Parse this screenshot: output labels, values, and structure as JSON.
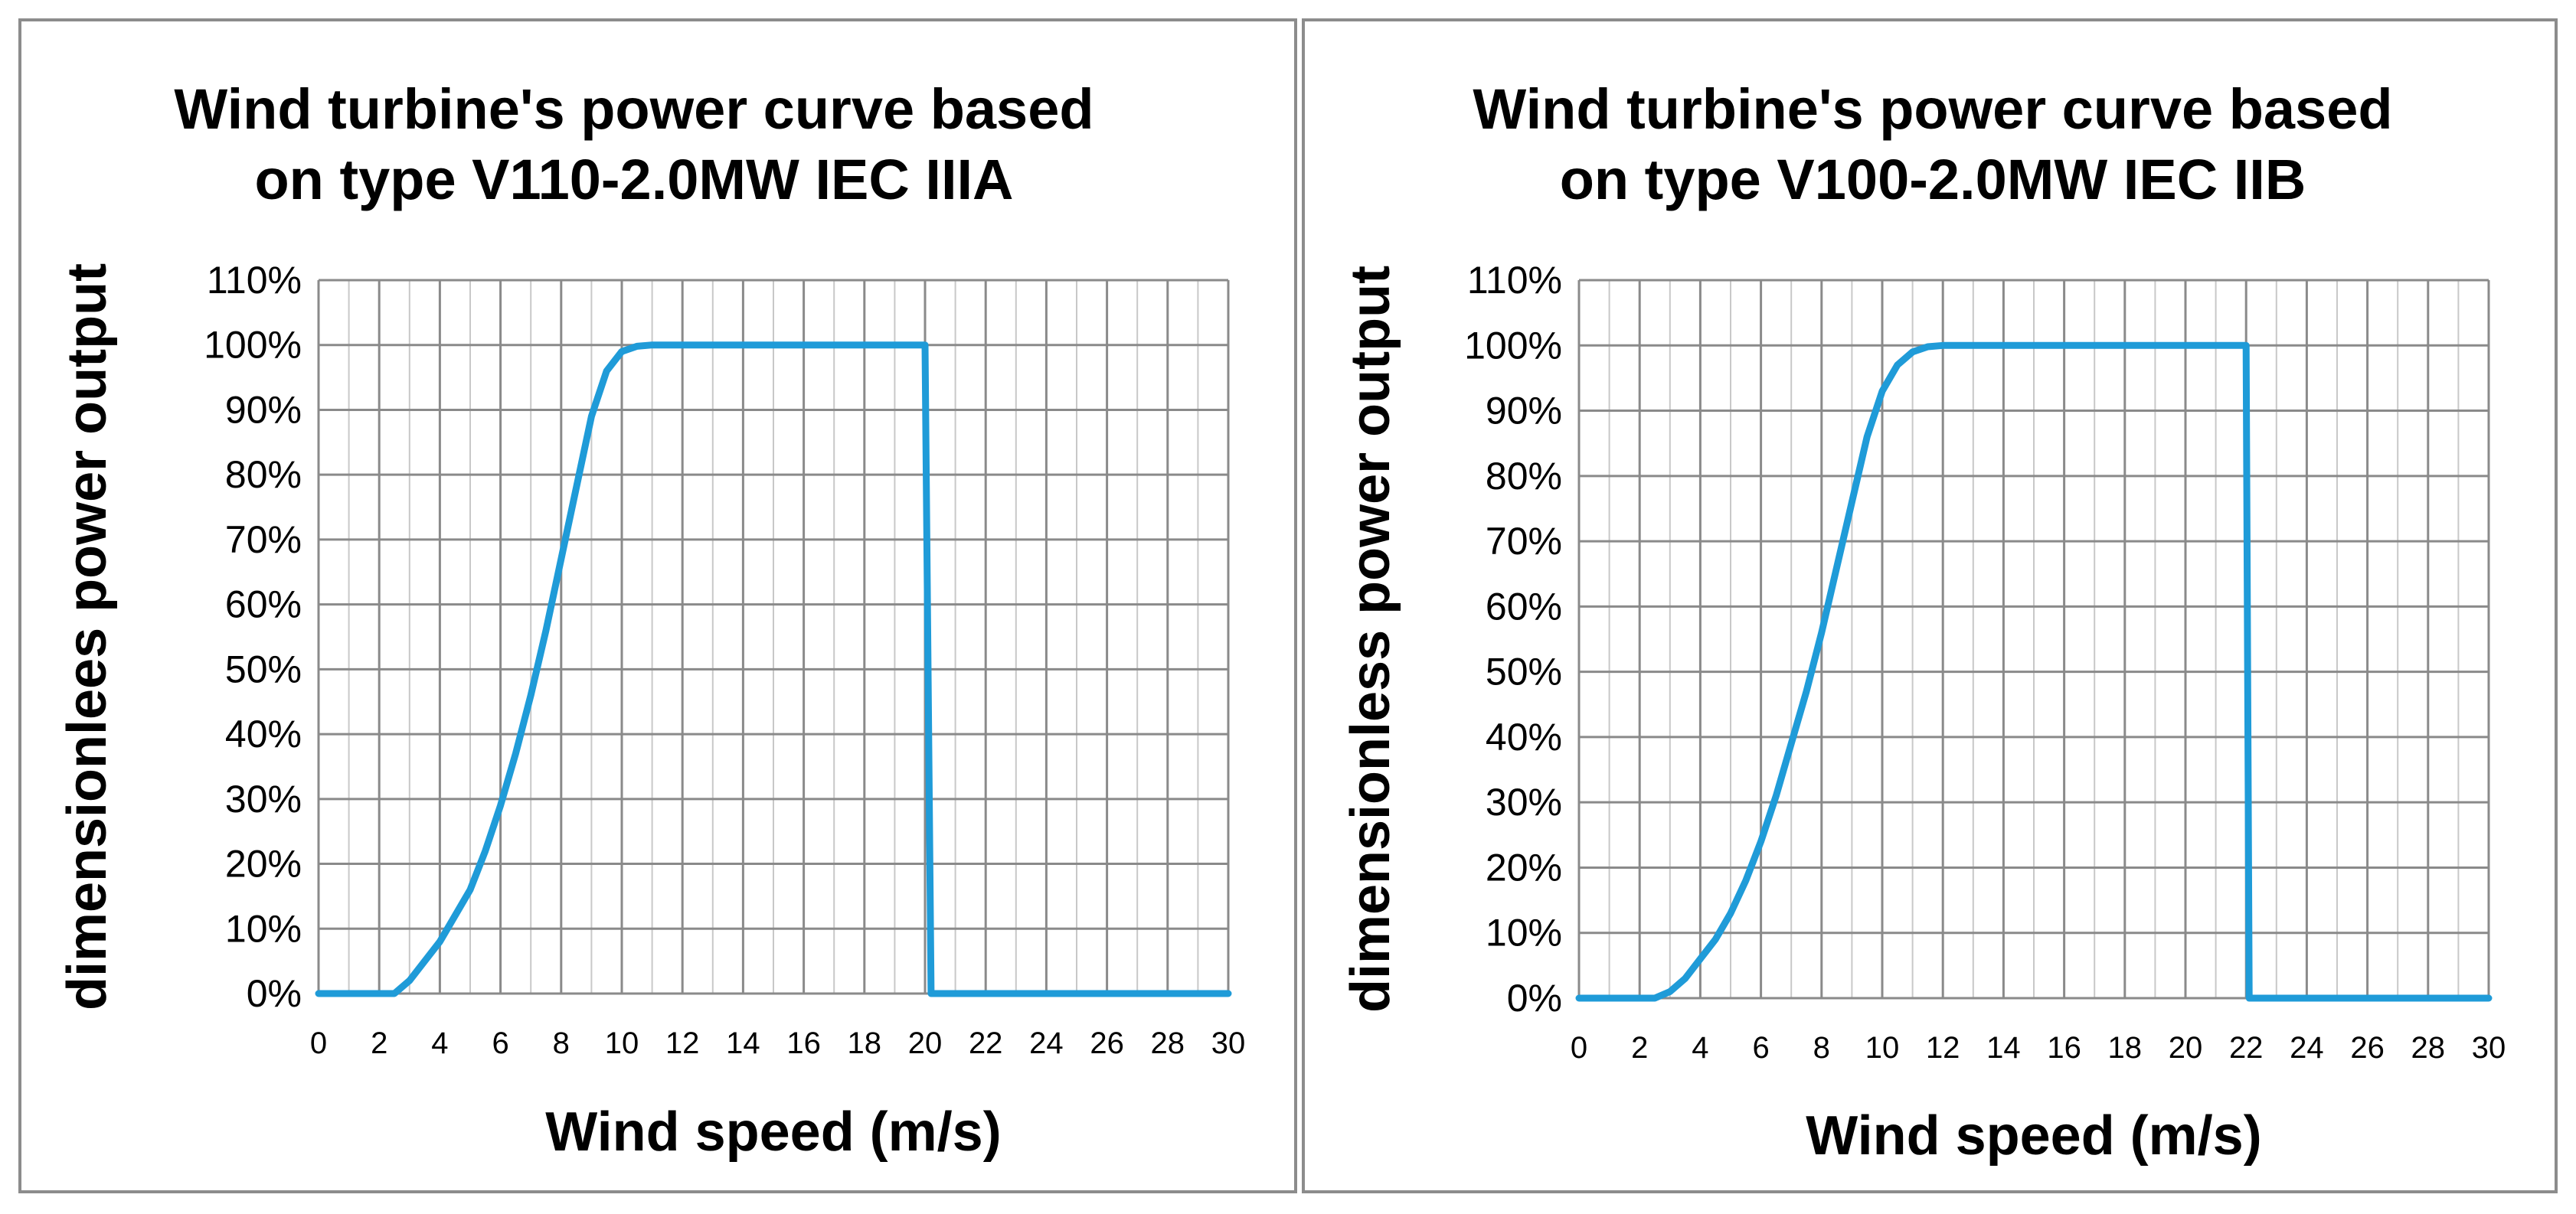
{
  "chart_data": [
    {
      "type": "line",
      "title_lines": [
        "Wind turbine's power curve based",
        "on type V110-2.0MW IEC IIIA"
      ],
      "xlabel": "Wind speed (m/s)",
      "ylabel": "dimensionlees power output",
      "xlim": [
        0,
        30
      ],
      "ylim": [
        0,
        110
      ],
      "x_ticks": [
        "0",
        "2",
        "4",
        "6",
        "8",
        "10",
        "12",
        "14",
        "16",
        "18",
        "20",
        "22",
        "24",
        "26",
        "28",
        "30"
      ],
      "y_ticks": [
        "0%",
        "10%",
        "20%",
        "30%",
        "40%",
        "50%",
        "60%",
        "70%",
        "80%",
        "90%",
        "100%",
        "110%"
      ],
      "grid": true,
      "series": [
        {
          "name": "V110-2.0MW IEC IIIA",
          "color": "#1f9bd8",
          "x": [
            0,
            2.5,
            3,
            3.5,
            4,
            4.5,
            5,
            5.5,
            6,
            6.5,
            7,
            7.5,
            8,
            8.5,
            9,
            9.5,
            10,
            10.5,
            11,
            12,
            14,
            16,
            18,
            20,
            20.2,
            21,
            30
          ],
          "y": [
            0,
            0,
            2,
            5,
            8,
            12,
            16,
            22,
            29,
            37,
            46,
            56,
            67,
            78,
            89,
            96,
            99,
            99.8,
            100,
            100,
            100,
            100,
            100,
            100,
            0,
            0,
            0
          ]
        }
      ]
    },
    {
      "type": "line",
      "title_lines": [
        "Wind turbine's power curve based",
        "on type V100-2.0MW IEC IIB"
      ],
      "xlabel": "Wind speed (m/s)",
      "ylabel": "dimensionless power output",
      "xlim": [
        0,
        30
      ],
      "ylim": [
        0,
        110
      ],
      "x_ticks": [
        "0",
        "2",
        "4",
        "6",
        "8",
        "10",
        "12",
        "14",
        "16",
        "18",
        "20",
        "22",
        "24",
        "26",
        "28",
        "30"
      ],
      "y_ticks": [
        "0%",
        "10%",
        "20%",
        "30%",
        "40%",
        "50%",
        "60%",
        "70%",
        "80%",
        "90%",
        "100%",
        "110%"
      ],
      "grid": true,
      "series": [
        {
          "name": "V100-2.0MW IEC IIB",
          "color": "#1f9bd8",
          "x": [
            0,
            2.5,
            3,
            3.5,
            4,
            4.5,
            5,
            5.5,
            6,
            6.5,
            7,
            7.5,
            8,
            8.5,
            9,
            9.5,
            10,
            10.5,
            11,
            11.5,
            12,
            14,
            16,
            18,
            20,
            22,
            22.1,
            23,
            30
          ],
          "y": [
            0,
            0,
            1,
            3,
            6,
            9,
            13,
            18,
            24,
            31,
            39,
            47,
            56,
            66,
            76,
            86,
            93,
            97,
            99,
            99.8,
            100,
            100,
            100,
            100,
            100,
            100,
            0,
            0,
            0
          ]
        }
      ]
    }
  ]
}
